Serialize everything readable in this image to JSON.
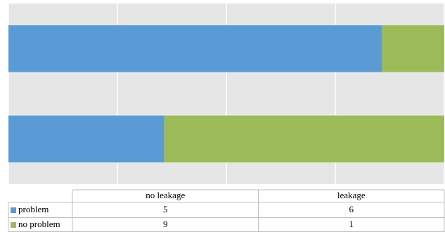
{
  "chart_data": {
    "type": "stacked_bar_horizontal",
    "percent_stacked": true,
    "categories": [
      "no leakage",
      "leakage"
    ],
    "series": [
      {
        "name": "problem",
        "color": "#5b9bd5",
        "values": [
          5,
          6
        ]
      },
      {
        "name": "no problem",
        "color": "#9bbb59",
        "values": [
          9,
          1
        ]
      }
    ],
    "xlim": [
      0,
      100
    ],
    "xticks": [
      0,
      25,
      50,
      75,
      100
    ],
    "grid": true,
    "data_table": true
  }
}
